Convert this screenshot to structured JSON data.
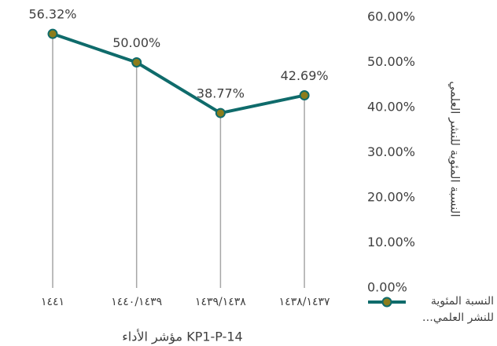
{
  "chart_data": {
    "type": "line",
    "categories": [
      "١٤٤١",
      "١٤٤٠/١٤٣٩",
      "١٤٣٩/١٤٣٨",
      "١٤٣٨/١٤٣٧"
    ],
    "series": [
      {
        "name": "النسبة المئوية للنشر العلمي…",
        "color": "#0f6b6b",
        "marker_color": "#8c7d1c",
        "values": [
          56.32,
          50.0,
          38.77,
          42.69
        ],
        "value_labels": [
          "56.32%",
          "50.00%",
          "38.77%",
          "42.69%"
        ]
      }
    ],
    "ylim": [
      0,
      60
    ],
    "yticks": [
      {
        "value": 0,
        "label": "0.00%"
      },
      {
        "value": 10,
        "label": "10.00%"
      },
      {
        "value": 20,
        "label": "20.00%"
      },
      {
        "value": 30,
        "label": "30.00%"
      },
      {
        "value": 40,
        "label": "40.00%"
      },
      {
        "value": 50,
        "label": "50.00%"
      },
      {
        "value": 60,
        "label": "60.00%"
      }
    ],
    "y_label": "النسبة المئوية للنشر العلمي",
    "x_label": "مؤشر الأداء KP1-P-14",
    "drop_lines": true,
    "legend": "bottom-right"
  }
}
